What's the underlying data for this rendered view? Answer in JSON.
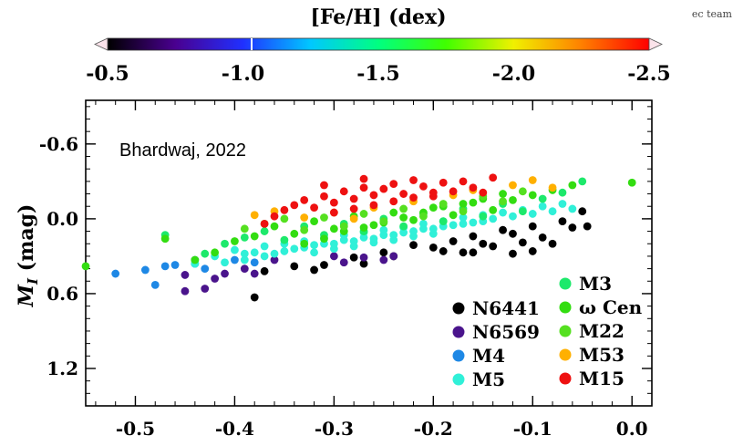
{
  "chart_data": {
    "type": "scatter",
    "annotation": "Bhardwaj, 2022",
    "corner_text": "ec team",
    "ylabel_main": "M",
    "ylabel_sub": "I",
    "ylabel_unit": " (mag)",
    "xlim": [
      -0.55,
      0.02
    ],
    "ylim": [
      1.5,
      -0.95
    ],
    "x_ticks": [
      -0.5,
      -0.4,
      -0.3,
      -0.2,
      -0.1,
      0.0
    ],
    "x_tick_labels": [
      "-0.5",
      "-0.4",
      "-0.3",
      "-0.2",
      "-0.1",
      "0.0"
    ],
    "y_ticks": [
      -0.6,
      0.0,
      0.6,
      1.2
    ],
    "y_tick_labels": [
      "-0.6",
      "0.0",
      "0.6",
      "1.2"
    ],
    "colorbar": {
      "title": "[Fe/H] (dex)",
      "range": [
        -0.5,
        -2.5
      ],
      "ticks": [
        -0.5,
        -1.0,
        -1.5,
        -2.0,
        -2.5
      ],
      "tick_labels": [
        "-0.5",
        "-1.0",
        "-1.5",
        "-2.0",
        "-2.5"
      ],
      "colors": [
        "#000000",
        "#4a0090",
        "#2030ff",
        "#00c8ff",
        "#00ff80",
        "#40ff00",
        "#f0f000",
        "#ff8000",
        "#ff0000"
      ]
    },
    "legend_placement": "bottom-right",
    "series": [
      {
        "name": "N6441",
        "color": "#000000",
        "points": [
          [
            -0.38,
            0.63
          ],
          [
            -0.37,
            0.42
          ],
          [
            -0.34,
            0.38
          ],
          [
            -0.32,
            0.41
          ],
          [
            -0.31,
            0.37
          ],
          [
            -0.28,
            0.31
          ],
          [
            -0.27,
            0.36
          ],
          [
            -0.25,
            0.27
          ],
          [
            -0.24,
            0.3
          ],
          [
            -0.22,
            0.21
          ],
          [
            -0.2,
            0.23
          ],
          [
            -0.19,
            0.26
          ],
          [
            -0.18,
            0.18
          ],
          [
            -0.17,
            0.27
          ],
          [
            -0.16,
            0.14
          ],
          [
            -0.15,
            0.2
          ],
          [
            -0.14,
            0.22
          ],
          [
            -0.13,
            0.09
          ],
          [
            -0.12,
            0.28
          ],
          [
            -0.11,
            0.19
          ],
          [
            -0.1,
            0.06
          ],
          [
            -0.09,
            0.15
          ],
          [
            -0.08,
            0.2
          ],
          [
            -0.07,
            0.02
          ],
          [
            -0.06,
            0.07
          ],
          [
            -0.05,
            -0.06
          ],
          [
            -0.045,
            0.06
          ],
          [
            -0.12,
            0.12
          ],
          [
            -0.16,
            0.27
          ],
          [
            -0.1,
            0.26
          ]
        ]
      },
      {
        "name": "N6569",
        "color": "#4a148c",
        "points": [
          [
            -0.45,
            0.58
          ],
          [
            -0.43,
            0.56
          ],
          [
            -0.41,
            0.44
          ],
          [
            -0.39,
            0.4
          ],
          [
            -0.38,
            0.44
          ],
          [
            -0.36,
            0.33
          ],
          [
            -0.3,
            0.3
          ],
          [
            -0.29,
            0.35
          ],
          [
            -0.27,
            0.31
          ],
          [
            -0.25,
            0.33
          ],
          [
            -0.24,
            0.3
          ],
          [
            -0.45,
            0.45
          ],
          [
            -0.42,
            0.48
          ]
        ]
      },
      {
        "name": "M4",
        "color": "#1e88e5",
        "points": [
          [
            -0.52,
            0.44
          ],
          [
            -0.49,
            0.41
          ],
          [
            -0.48,
            0.53
          ],
          [
            -0.47,
            0.38
          ],
          [
            -0.44,
            0.36
          ],
          [
            -0.43,
            0.4
          ],
          [
            -0.4,
            0.33
          ],
          [
            -0.38,
            0.35
          ],
          [
            -0.44,
            0.33
          ],
          [
            -0.46,
            0.37
          ]
        ]
      },
      {
        "name": "M5",
        "color": "#30f0d8",
        "points": [
          [
            -0.44,
            0.36
          ],
          [
            -0.42,
            0.3
          ],
          [
            -0.41,
            0.35
          ],
          [
            -0.4,
            0.25
          ],
          [
            -0.39,
            0.33
          ],
          [
            -0.38,
            0.27
          ],
          [
            -0.37,
            0.22
          ],
          [
            -0.36,
            0.28
          ],
          [
            -0.35,
            0.2
          ],
          [
            -0.34,
            0.24
          ],
          [
            -0.33,
            0.18
          ],
          [
            -0.32,
            0.21
          ],
          [
            -0.31,
            0.15
          ],
          [
            -0.3,
            0.2
          ],
          [
            -0.29,
            0.13
          ],
          [
            -0.28,
            0.18
          ],
          [
            -0.27,
            0.11
          ],
          [
            -0.26,
            0.16
          ],
          [
            -0.25,
            0.09
          ],
          [
            -0.24,
            0.13
          ],
          [
            -0.23,
            0.07
          ],
          [
            -0.22,
            0.1
          ],
          [
            -0.21,
            0.04
          ],
          [
            -0.2,
            0.08
          ],
          [
            -0.19,
            0.02
          ],
          [
            -0.18,
            0.05
          ],
          [
            -0.17,
            -0.01
          ],
          [
            -0.16,
            0.03
          ],
          [
            -0.15,
            -0.03
          ],
          [
            -0.14,
            0.0
          ],
          [
            -0.13,
            -0.05
          ],
          [
            -0.12,
            -0.02
          ],
          [
            -0.11,
            -0.07
          ],
          [
            -0.1,
            -0.04
          ],
          [
            -0.09,
            -0.1
          ],
          [
            -0.08,
            -0.06
          ],
          [
            -0.07,
            -0.12
          ],
          [
            -0.06,
            -0.08
          ],
          [
            -0.35,
            0.26
          ],
          [
            -0.33,
            0.23
          ],
          [
            -0.31,
            0.2
          ],
          [
            -0.29,
            0.17
          ],
          [
            -0.27,
            0.15
          ],
          [
            -0.25,
            0.13
          ],
          [
            -0.23,
            0.11
          ],
          [
            -0.21,
            0.08
          ],
          [
            -0.19,
            0.06
          ],
          [
            -0.17,
            0.04
          ],
          [
            -0.15,
            0.02
          ],
          [
            -0.32,
            0.27
          ],
          [
            -0.3,
            0.24
          ],
          [
            -0.28,
            0.22
          ],
          [
            -0.26,
            0.19
          ],
          [
            -0.24,
            0.17
          ],
          [
            -0.22,
            0.14
          ],
          [
            -0.2,
            0.12
          ],
          [
            -0.37,
            0.3
          ],
          [
            -0.39,
            0.28
          ]
        ]
      },
      {
        "name": "M3",
        "color": "#1de96b",
        "points": [
          [
            -0.47,
            0.13
          ],
          [
            -0.43,
            0.28
          ],
          [
            -0.41,
            0.2
          ],
          [
            -0.39,
            0.15
          ],
          [
            -0.37,
            0.1
          ],
          [
            -0.35,
            0.17
          ],
          [
            -0.33,
            0.06
          ],
          [
            -0.31,
            0.13
          ],
          [
            -0.29,
            0.04
          ],
          [
            -0.27,
            0.1
          ],
          [
            -0.25,
            0.0
          ],
          [
            -0.23,
            0.06
          ],
          [
            -0.21,
            -0.04
          ],
          [
            -0.19,
            0.02
          ],
          [
            -0.17,
            -0.08
          ],
          [
            -0.15,
            -0.02
          ],
          [
            -0.13,
            -0.12
          ],
          [
            -0.11,
            -0.06
          ],
          [
            -0.09,
            -0.16
          ],
          [
            -0.07,
            -0.21
          ],
          [
            -0.05,
            -0.3
          ]
        ]
      },
      {
        "name": "ω Cen",
        "color": "#33dd11",
        "points": [
          [
            -0.55,
            0.38
          ],
          [
            -0.47,
            0.16
          ],
          [
            -0.44,
            0.33
          ],
          [
            -0.42,
            0.27
          ],
          [
            -0.4,
            0.18
          ],
          [
            -0.38,
            0.14
          ],
          [
            -0.36,
            0.06
          ],
          [
            -0.34,
            0.12
          ],
          [
            -0.32,
            0.02
          ],
          [
            -0.3,
            0.08
          ],
          [
            -0.28,
            -0.02
          ],
          [
            -0.26,
            0.05
          ],
          [
            -0.24,
            -0.05
          ],
          [
            -0.22,
            0.01
          ],
          [
            -0.2,
            -0.09
          ],
          [
            -0.18,
            -0.03
          ],
          [
            -0.16,
            -0.13
          ],
          [
            -0.14,
            -0.07
          ],
          [
            -0.12,
            -0.15
          ],
          [
            -0.1,
            -0.19
          ],
          [
            -0.08,
            -0.23
          ],
          [
            -0.06,
            -0.27
          ],
          [
            0.0,
            -0.29
          ],
          [
            -0.33,
            0.2
          ],
          [
            -0.31,
            0.16
          ],
          [
            -0.29,
            0.1
          ],
          [
            -0.27,
            0.07
          ],
          [
            -0.25,
            0.03
          ],
          [
            -0.23,
            -0.01
          ],
          [
            -0.21,
            -0.05
          ],
          [
            -0.19,
            -0.1
          ],
          [
            -0.17,
            -0.12
          ],
          [
            -0.15,
            -0.16
          ],
          [
            -0.13,
            -0.2
          ]
        ]
      },
      {
        "name": "M22",
        "color": "#55e020",
        "points": [
          [
            -0.39,
            0.08
          ],
          [
            -0.37,
            0.04
          ],
          [
            -0.35,
            0.0
          ],
          [
            -0.33,
            0.09
          ],
          [
            -0.31,
            -0.01
          ],
          [
            -0.29,
            0.06
          ],
          [
            -0.27,
            -0.04
          ],
          [
            -0.25,
            0.02
          ],
          [
            -0.23,
            -0.08
          ],
          [
            -0.21,
            -0.02
          ],
          [
            -0.19,
            -0.12
          ],
          [
            -0.17,
            -0.06
          ],
          [
            -0.15,
            -0.18
          ],
          [
            -0.13,
            -0.14
          ],
          [
            -0.11,
            -0.22
          ]
        ]
      },
      {
        "name": "M53",
        "color": "#ffb000",
        "points": [
          [
            -0.38,
            -0.03
          ],
          [
            -0.33,
            -0.01
          ],
          [
            -0.3,
            -0.05
          ],
          [
            -0.26,
            -0.09
          ],
          [
            -0.22,
            -0.14
          ],
          [
            -0.18,
            -0.19
          ],
          [
            -0.16,
            -0.23
          ],
          [
            -0.12,
            -0.27
          ],
          [
            -0.1,
            -0.31
          ],
          [
            -0.08,
            -0.25
          ],
          [
            -0.36,
            -0.06
          ],
          [
            -0.28,
            0.0
          ]
        ]
      },
      {
        "name": "M15",
        "color": "#ee1111",
        "points": [
          [
            -0.37,
            0.04
          ],
          [
            -0.36,
            -0.02
          ],
          [
            -0.35,
            -0.07
          ],
          [
            -0.34,
            -0.11
          ],
          [
            -0.33,
            -0.15
          ],
          [
            -0.32,
            -0.09
          ],
          [
            -0.31,
            -0.18
          ],
          [
            -0.3,
            -0.13
          ],
          [
            -0.29,
            -0.22
          ],
          [
            -0.28,
            -0.16
          ],
          [
            -0.27,
            -0.25
          ],
          [
            -0.26,
            -0.19
          ],
          [
            -0.25,
            -0.24
          ],
          [
            -0.24,
            -0.28
          ],
          [
            -0.23,
            -0.2
          ],
          [
            -0.22,
            -0.31
          ],
          [
            -0.21,
            -0.26
          ],
          [
            -0.2,
            -0.18
          ],
          [
            -0.19,
            -0.29
          ],
          [
            -0.18,
            -0.22
          ],
          [
            -0.17,
            -0.3
          ],
          [
            -0.16,
            -0.25
          ],
          [
            -0.15,
            -0.21
          ],
          [
            -0.14,
            -0.33
          ],
          [
            -0.3,
            -0.05
          ],
          [
            -0.28,
            -0.08
          ],
          [
            -0.26,
            -0.11
          ],
          [
            -0.24,
            -0.14
          ],
          [
            -0.22,
            -0.17
          ],
          [
            -0.2,
            -0.21
          ],
          [
            -0.31,
            -0.27
          ],
          [
            -0.27,
            -0.32
          ]
        ]
      }
    ],
    "legend_left": [
      "N6441",
      "N6569",
      "M4",
      "M5"
    ],
    "legend_right": [
      "M3",
      "ω Cen",
      "M22",
      "M53",
      "M15"
    ]
  }
}
